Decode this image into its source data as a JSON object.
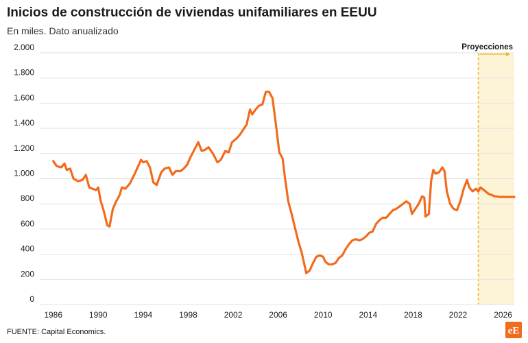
{
  "header": {
    "title": "Inicios de construcción de viviendas unifamiliares en EEUU",
    "subtitle": "En miles. Dato anualizado"
  },
  "footer": {
    "source": "FUENTE: Capital Economics.",
    "logo_text": "eE"
  },
  "colors": {
    "line": "#f26b1d",
    "projection_fill": "#fdf3d6",
    "projection_border": "#f2b51b",
    "grid": "#e2e2e2",
    "logo_bg": "#f26b1d"
  },
  "chart_data": {
    "type": "line",
    "title": "Inicios de construcción de viviendas unifamiliares en EEUU",
    "subtitle": "En miles. Dato anualizado",
    "xlabel": "",
    "ylabel": "",
    "xlim": [
      1984.8,
      2027.0
    ],
    "ylim": [
      0,
      2000
    ],
    "x_ticks": [
      1986,
      1990,
      1994,
      1998,
      2002,
      2006,
      2010,
      2014,
      2018,
      2022,
      2026
    ],
    "x_tick_labels": [
      "1986",
      "1990",
      "1994",
      "1998",
      "2002",
      "2006",
      "2010",
      "2014",
      "2018",
      "2022",
      "2026"
    ],
    "y_ticks": [
      0,
      200,
      400,
      600,
      800,
      1000,
      1200,
      1400,
      1600,
      1800,
      2000
    ],
    "y_tick_labels": [
      "0",
      "200",
      "400",
      "600",
      "800",
      "1.000",
      "1.200",
      "1.400",
      "1.600",
      "1.800",
      "2.000"
    ],
    "grid": "horizontal",
    "projection": {
      "label": "Proyecciones",
      "start": 2023.8,
      "end": 2027.0
    },
    "series": [
      {
        "values": [
          [
            1986.0,
            1140
          ],
          [
            1986.3,
            1100
          ],
          [
            1986.7,
            1090
          ],
          [
            1987.0,
            1120
          ],
          [
            1987.2,
            1070
          ],
          [
            1987.5,
            1080
          ],
          [
            1987.8,
            1000
          ],
          [
            1988.2,
            980
          ],
          [
            1988.6,
            990
          ],
          [
            1988.9,
            1030
          ],
          [
            1989.2,
            930
          ],
          [
            1989.5,
            920
          ],
          [
            1989.8,
            910
          ],
          [
            1990.0,
            930
          ],
          [
            1990.2,
            830
          ],
          [
            1990.5,
            740
          ],
          [
            1990.8,
            630
          ],
          [
            1991.0,
            620
          ],
          [
            1991.3,
            760
          ],
          [
            1991.6,
            820
          ],
          [
            1991.9,
            870
          ],
          [
            1992.1,
            930
          ],
          [
            1992.4,
            920
          ],
          [
            1992.8,
            960
          ],
          [
            1993.2,
            1030
          ],
          [
            1993.5,
            1090
          ],
          [
            1993.8,
            1150
          ],
          [
            1994.0,
            1130
          ],
          [
            1994.3,
            1140
          ],
          [
            1994.6,
            1090
          ],
          [
            1994.9,
            970
          ],
          [
            1995.2,
            950
          ],
          [
            1995.6,
            1050
          ],
          [
            1995.9,
            1080
          ],
          [
            1996.3,
            1090
          ],
          [
            1996.6,
            1030
          ],
          [
            1996.9,
            1060
          ],
          [
            1997.3,
            1060
          ],
          [
            1997.6,
            1080
          ],
          [
            1997.9,
            1110
          ],
          [
            1998.2,
            1170
          ],
          [
            1998.6,
            1240
          ],
          [
            1998.9,
            1290
          ],
          [
            1999.2,
            1220
          ],
          [
            1999.5,
            1230
          ],
          [
            1999.8,
            1250
          ],
          [
            2000.2,
            1200
          ],
          [
            2000.6,
            1130
          ],
          [
            2000.9,
            1150
          ],
          [
            2001.3,
            1220
          ],
          [
            2001.6,
            1210
          ],
          [
            2001.9,
            1290
          ],
          [
            2002.3,
            1320
          ],
          [
            2002.6,
            1350
          ],
          [
            2002.9,
            1390
          ],
          [
            2003.2,
            1430
          ],
          [
            2003.5,
            1550
          ],
          [
            2003.7,
            1510
          ],
          [
            2004.0,
            1550
          ],
          [
            2004.3,
            1580
          ],
          [
            2004.6,
            1590
          ],
          [
            2004.9,
            1690
          ],
          [
            2005.2,
            1690
          ],
          [
            2005.5,
            1640
          ],
          [
            2005.8,
            1430
          ],
          [
            2006.1,
            1210
          ],
          [
            2006.4,
            1160
          ],
          [
            2006.6,
            1010
          ],
          [
            2006.9,
            820
          ],
          [
            2007.2,
            720
          ],
          [
            2007.5,
            610
          ],
          [
            2007.8,
            500
          ],
          [
            2008.1,
            410
          ],
          [
            2008.3,
            330
          ],
          [
            2008.5,
            250
          ],
          [
            2008.8,
            270
          ],
          [
            2009.1,
            330
          ],
          [
            2009.4,
            380
          ],
          [
            2009.7,
            390
          ],
          [
            2010.0,
            380
          ],
          [
            2010.2,
            340
          ],
          [
            2010.5,
            320
          ],
          [
            2010.8,
            320
          ],
          [
            2011.1,
            330
          ],
          [
            2011.4,
            370
          ],
          [
            2011.7,
            390
          ],
          [
            2012.0,
            440
          ],
          [
            2012.3,
            480
          ],
          [
            2012.6,
            510
          ],
          [
            2012.9,
            520
          ],
          [
            2013.2,
            510
          ],
          [
            2013.5,
            520
          ],
          [
            2013.8,
            540
          ],
          [
            2014.1,
            570
          ],
          [
            2014.4,
            580
          ],
          [
            2014.7,
            640
          ],
          [
            2015.0,
            670
          ],
          [
            2015.3,
            690
          ],
          [
            2015.6,
            690
          ],
          [
            2015.9,
            720
          ],
          [
            2016.2,
            750
          ],
          [
            2016.5,
            760
          ],
          [
            2016.8,
            780
          ],
          [
            2017.1,
            800
          ],
          [
            2017.4,
            820
          ],
          [
            2017.7,
            800
          ],
          [
            2017.9,
            720
          ],
          [
            2018.2,
            760
          ],
          [
            2018.5,
            800
          ],
          [
            2018.8,
            860
          ],
          [
            2019.0,
            850
          ],
          [
            2019.1,
            700
          ],
          [
            2019.4,
            720
          ],
          [
            2019.6,
            980
          ],
          [
            2019.8,
            1070
          ],
          [
            2020.0,
            1040
          ],
          [
            2020.3,
            1050
          ],
          [
            2020.6,
            1090
          ],
          [
            2020.8,
            1060
          ],
          [
            2021.0,
            900
          ],
          [
            2021.3,
            800
          ],
          [
            2021.6,
            760
          ],
          [
            2021.9,
            750
          ],
          [
            2022.2,
            820
          ],
          [
            2022.5,
            920
          ],
          [
            2022.8,
            990
          ],
          [
            2023.0,
            930
          ],
          [
            2023.3,
            900
          ],
          [
            2023.6,
            920
          ],
          [
            2023.8,
            900
          ],
          [
            2024.0,
            930
          ],
          [
            2024.3,
            910
          ],
          [
            2024.7,
            880
          ],
          [
            2025.0,
            870
          ],
          [
            2025.3,
            860
          ],
          [
            2025.7,
            855
          ],
          [
            2026.0,
            855
          ],
          [
            2026.5,
            855
          ],
          [
            2027.0,
            855
          ]
        ]
      }
    ]
  }
}
